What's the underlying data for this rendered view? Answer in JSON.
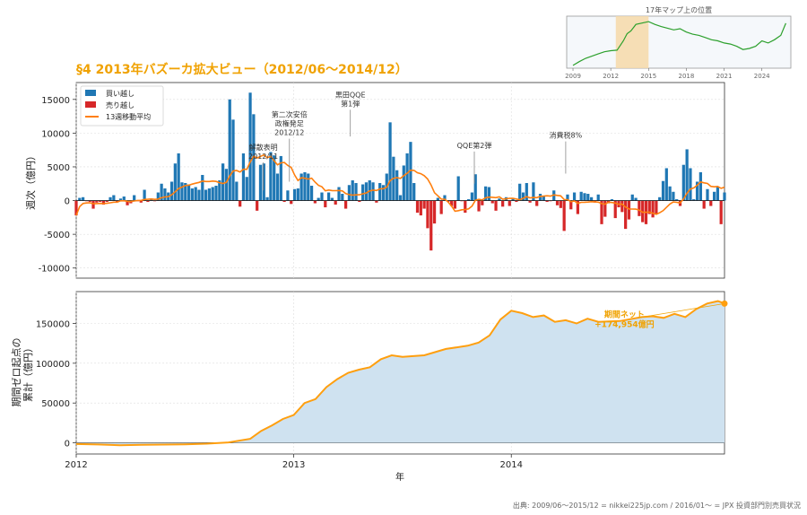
{
  "section_title": "§4 2013年バズーカ拡大ビュー（2012/06〜2014/12）",
  "footer": "出典: 2009/06〜2015/12 = nikkei225jp.com / 2016/01〜 = JPX 投資部門別売買状況",
  "chart_data": [
    {
      "type": "bar",
      "ylabel": "週次（億円）",
      "ylim": [
        -11500,
        17500
      ],
      "yticks": [
        15000,
        10000,
        5000,
        0,
        -5000,
        -10000
      ],
      "ytick_labels": [
        "15000",
        "10000",
        "5000",
        "0",
        "-5000",
        "-10000"
      ],
      "grid": true,
      "legend_position": "top-left",
      "legend": [
        {
          "label": "買い越し",
          "color": "#1f77b4"
        },
        {
          "label": "売り越し",
          "color": "#d62728"
        },
        {
          "label": "13週移動平均",
          "color": "#ff7f0e"
        }
      ],
      "weeks_x_range": [
        2012.0,
        2014.98
      ],
      "weekly_values": [
        -2200,
        400,
        500,
        -100,
        -200,
        -1200,
        -300,
        -200,
        -600,
        -200,
        500,
        800,
        -200,
        300,
        600,
        -700,
        -400,
        800,
        -100,
        -300,
        1600,
        -200,
        300,
        -100,
        1200,
        2500,
        1800,
        1200,
        2800,
        5500,
        7000,
        2700,
        2600,
        2400,
        1800,
        2000,
        1600,
        3800,
        1600,
        1800,
        2000,
        2200,
        3000,
        5500,
        4700,
        15000,
        12000,
        2800,
        -900,
        7000,
        3500,
        16000,
        12800,
        -1500,
        5300,
        5500,
        500,
        7200,
        6700,
        4000,
        6600,
        -200,
        1500,
        -500,
        1700,
        1800,
        4000,
        4200,
        4000,
        2200,
        -400,
        400,
        1200,
        -1000,
        1200,
        400,
        -600,
        2000,
        1000,
        -1200,
        2300,
        3000,
        2600,
        -200,
        2400,
        2700,
        3000,
        2700,
        -300,
        2600,
        2300,
        4000,
        11600,
        6500,
        4500,
        800,
        5200,
        7000,
        8700,
        2600,
        -1800,
        -2200,
        -1200,
        -4100,
        -7400,
        -3400,
        400,
        -2000,
        800,
        -200,
        -800,
        -1200,
        3600,
        -100,
        -1800,
        200,
        1200,
        3900,
        -1600,
        -700,
        2100,
        2000,
        -400,
        -1500,
        300,
        -900,
        500,
        -800,
        300,
        -200,
        2500,
        1200,
        2600,
        -300,
        2700,
        -800,
        1000,
        700,
        -200,
        -100,
        1500,
        -700,
        -1100,
        -4500,
        900,
        -1300,
        1200,
        -2000,
        1300,
        1100,
        1000,
        500,
        -300,
        900,
        -3500,
        -2400,
        -400,
        200,
        -2600,
        -1000,
        -1700,
        -4200,
        -2800,
        900,
        400,
        -2300,
        -3200,
        -3500,
        -2000,
        -2500,
        -2000,
        500,
        2900,
        4800,
        2100,
        1300,
        200,
        -800,
        5300,
        7600,
        4800,
        200,
        2800,
        4200,
        -1200,
        1700,
        -800,
        1300,
        2000,
        -3500,
        1200
      ]
    },
    {
      "type": "area",
      "ylabel": "期間ゼロ起点の累計（億円）",
      "ylim": [
        -14000,
        190000
      ],
      "yticks": [
        150000,
        100000,
        50000,
        0
      ],
      "ytick_labels": [
        "150000",
        "100000",
        "50000",
        "0"
      ],
      "xlabel": "年",
      "xlim": [
        2012.0,
        2014.98
      ],
      "xticks": [
        2012.0,
        2013.0,
        2014.0
      ],
      "xtick_labels": [
        "2012",
        "2013",
        "2014"
      ],
      "x": [
        2012.0,
        2012.1,
        2012.2,
        2012.3,
        2012.4,
        2012.5,
        2012.6,
        2012.7,
        2012.8,
        2012.85,
        2012.9,
        2012.95,
        2013.0,
        2013.05,
        2013.1,
        2013.15,
        2013.2,
        2013.25,
        2013.3,
        2013.35,
        2013.4,
        2013.45,
        2013.5,
        2013.6,
        2013.7,
        2013.8,
        2013.85,
        2013.9,
        2013.95,
        2014.0,
        2014.05,
        2014.1,
        2014.15,
        2014.2,
        2014.25,
        2014.3,
        2014.35,
        2014.4,
        2014.5,
        2014.6,
        2014.65,
        2014.7,
        2014.75,
        2014.8,
        2014.85,
        2014.9,
        2014.95,
        2014.98
      ],
      "y": [
        -1500,
        -2000,
        -3000,
        -2500,
        -2200,
        -1800,
        -1000,
        500,
        5000,
        15000,
        22000,
        30000,
        35000,
        50000,
        55000,
        70000,
        80000,
        88000,
        92000,
        95000,
        105000,
        110000,
        108000,
        110000,
        118000,
        122000,
        126000,
        135000,
        155000,
        166000,
        163000,
        158000,
        160000,
        152000,
        154000,
        150000,
        156000,
        152000,
        153000,
        158000,
        159000,
        157000,
        162000,
        158000,
        168000,
        175000,
        178000,
        174954
      ],
      "annotation": "期間ネット\n+174,954億円",
      "series_color": "#ff9f0f",
      "fill_color": "#cfe2f0"
    },
    {
      "type": "line",
      "title": "17年マップ上の位置",
      "xticks": [
        2009,
        2012,
        2015,
        2018,
        2021,
        2024
      ],
      "xtick_labels": [
        "2009",
        "2012",
        "2015",
        "2018",
        "2021",
        "2024"
      ],
      "xlim": [
        2008.5,
        2026.3
      ],
      "highlight_range": [
        2012.4,
        2015.0
      ],
      "x": [
        2009.0,
        2009.5,
        2010.0,
        2010.5,
        2011.0,
        2011.5,
        2012.0,
        2012.5,
        2013.0,
        2013.3,
        2013.6,
        2014.0,
        2014.4,
        2015.0,
        2015.5,
        2016.0,
        2016.5,
        2017.0,
        2017.5,
        2018.0,
        2018.5,
        2019.0,
        2019.5,
        2020.0,
        2020.5,
        2021.0,
        2021.5,
        2022.0,
        2022.5,
        2023.0,
        2023.5,
        2024.0,
        2024.5,
        2025.0,
        2025.5,
        2025.9
      ],
      "y": [
        5,
        12,
        18,
        22,
        26,
        30,
        32,
        33,
        50,
        63,
        68,
        80,
        82,
        85,
        80,
        76,
        73,
        70,
        72,
        66,
        62,
        60,
        56,
        52,
        50,
        46,
        44,
        40,
        34,
        36,
        40,
        50,
        46,
        52,
        60,
        82
      ],
      "ylim": [
        0,
        95
      ],
      "series_color": "#2ca02c",
      "highlight_color": "#f6d9a8"
    }
  ],
  "annotations": [
    {
      "text": "解散表明\n2012/11",
      "x": 2012.86,
      "y": 1500,
      "text_y": 6200
    },
    {
      "text": "第二次安倍\n政権発足\n2012/12",
      "x": 2012.98,
      "y": 2800,
      "text_y": 9700
    },
    {
      "text": "黒田QQE\n第1弾",
      "x": 2013.26,
      "y": 9500,
      "text_y": 14000
    },
    {
      "text": "QQE第2弾",
      "x": 2013.83,
      "y": 2500,
      "text_y": 7800
    },
    {
      "text": "消費税8%",
      "x": 2014.25,
      "y": 4000,
      "text_y": 9300
    }
  ]
}
